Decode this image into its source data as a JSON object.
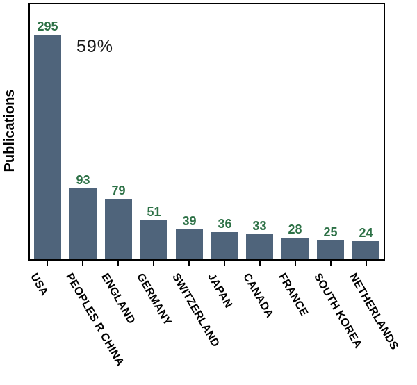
{
  "chart_data": {
    "type": "bar",
    "title": "",
    "xlabel": "",
    "ylabel": "Publications",
    "categories": [
      "USA",
      "PEOPLES R CHINA",
      "ENGLAND",
      "GERMANY",
      "SWITZERLAND",
      "JAPAN",
      "CANADA",
      "FRANCE",
      "SOUTH KOREA",
      "NETHERLANDS"
    ],
    "values": [
      295,
      93,
      79,
      51,
      39,
      36,
      33,
      28,
      25,
      24
    ],
    "ylim": [
      0,
      335
    ],
    "grid": false,
    "legend_position": "none",
    "bar_value_labels_shown": true,
    "annotations": [
      {
        "text": "59%",
        "target_category": "USA"
      }
    ],
    "colors": {
      "bar": "#4f647b",
      "value_label": "#2d7146",
      "category_label": "#000000",
      "axis_frame": "#000000",
      "annotation": "#1a1a1a",
      "background": "#ffffff"
    }
  }
}
